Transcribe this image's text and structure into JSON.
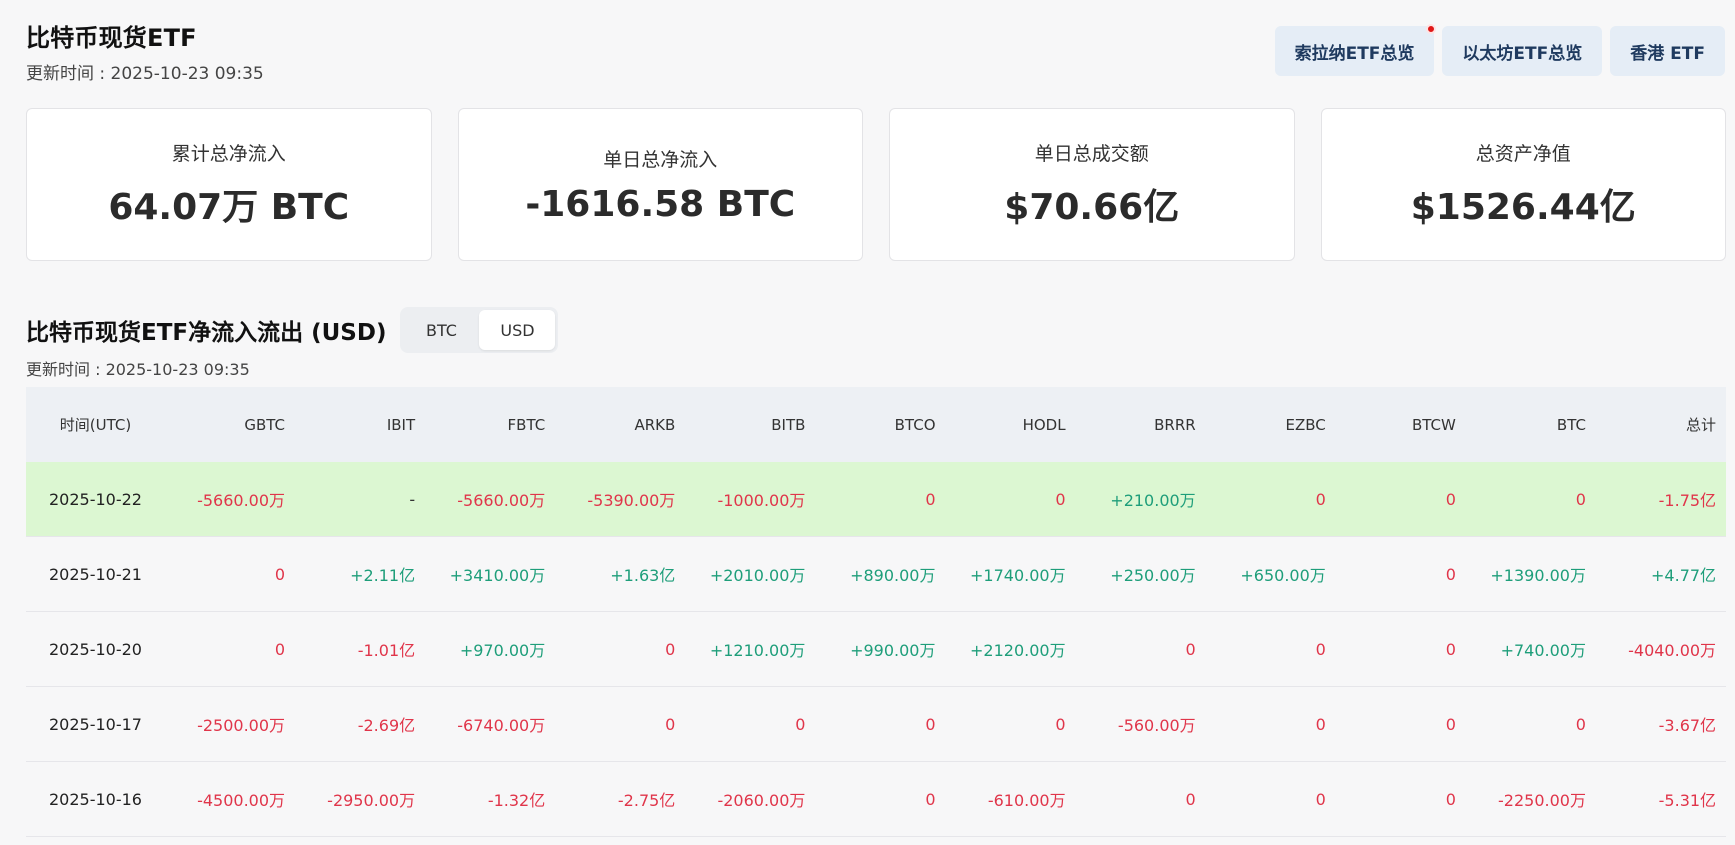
{
  "header": {
    "title": "比特币现货ETF",
    "update_time": "更新时间 : 2025-10-23 09:35"
  },
  "top_buttons": [
    "索拉纳ETF总览",
    "以太坊ETF总览",
    "香港 ETF"
  ],
  "stats": [
    {
      "label": "累计总净流入",
      "value": "64.07万 BTC"
    },
    {
      "label": "单日总净流入",
      "value": "-1616.58 BTC"
    },
    {
      "label": "单日总成交额",
      "value": "$70.66亿"
    },
    {
      "label": "总资产净值",
      "value": "$1526.44亿"
    }
  ],
  "section": {
    "title": "比特币现货ETF净流入流出 (USD)",
    "toggle": [
      "BTC",
      "USD"
    ],
    "toggle_active": "USD",
    "update_time": "更新时间 : 2025-10-23 09:35"
  },
  "colors": {
    "positive": "#1e9e7a",
    "negative": "#e0354a",
    "highlight_row": "#dcf7d2"
  },
  "table": {
    "columns": [
      "时间(UTC)",
      "GBTC",
      "IBIT",
      "FBTC",
      "ARKB",
      "BITB",
      "BTCO",
      "HODL",
      "BRRR",
      "EZBC",
      "BTCW",
      "BTC",
      "总计"
    ],
    "rows": [
      [
        "2025-10-22",
        "-5660.00万",
        "-",
        "-5660.00万",
        "-5390.00万",
        "-1000.00万",
        "0",
        "0",
        "+210.00万",
        "0",
        "0",
        "0",
        "-1.75亿"
      ],
      [
        "2025-10-21",
        "0",
        "+2.11亿",
        "+3410.00万",
        "+1.63亿",
        "+2010.00万",
        "+890.00万",
        "+1740.00万",
        "+250.00万",
        "+650.00万",
        "0",
        "+1390.00万",
        "+4.77亿"
      ],
      [
        "2025-10-20",
        "0",
        "-1.01亿",
        "+970.00万",
        "0",
        "+1210.00万",
        "+990.00万",
        "+2120.00万",
        "0",
        "0",
        "0",
        "+740.00万",
        "-4040.00万"
      ],
      [
        "2025-10-17",
        "-2500.00万",
        "-2.69亿",
        "-6740.00万",
        "0",
        "0",
        "0",
        "0",
        "-560.00万",
        "0",
        "0",
        "0",
        "-3.67亿"
      ],
      [
        "2025-10-16",
        "-4500.00万",
        "-2950.00万",
        "-1.32亿",
        "-2.75亿",
        "-2060.00万",
        "0",
        "-610.00万",
        "0",
        "0",
        "0",
        "-2250.00万",
        "-5.31亿"
      ]
    ],
    "highlighted_row": 0
  }
}
